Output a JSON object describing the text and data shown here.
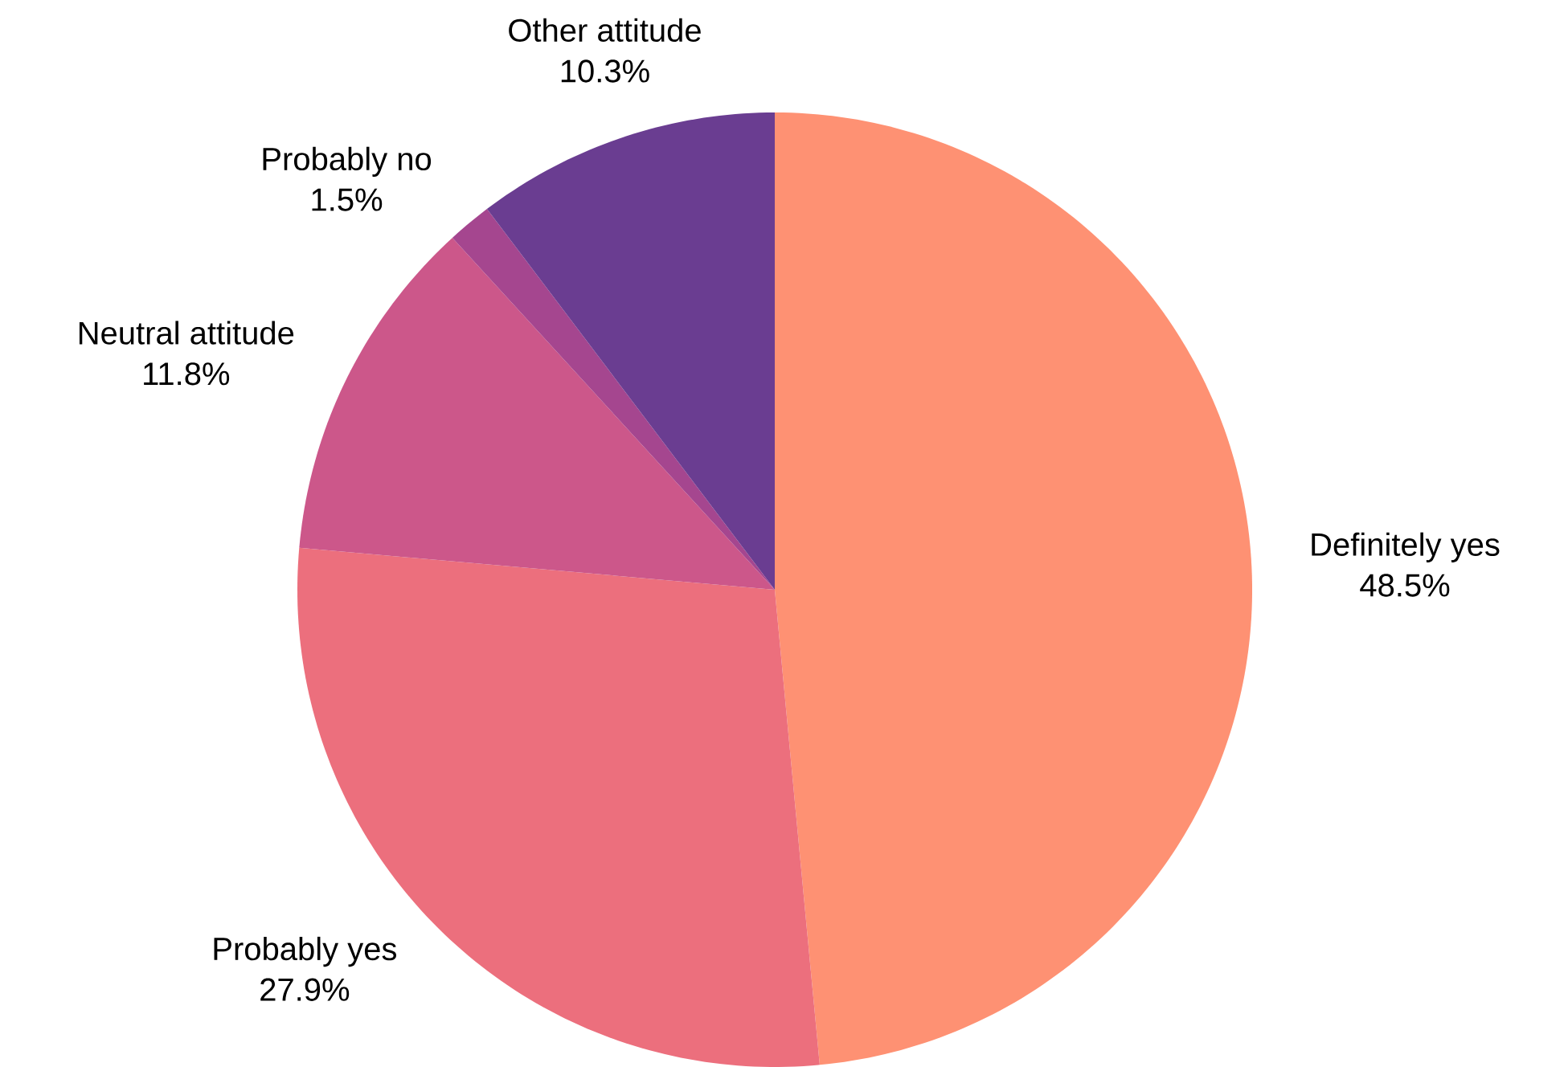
{
  "chart_data": {
    "type": "pie",
    "categories": [
      "Definitely yes",
      "Probably yes",
      "Neutral attitude",
      "Probably no",
      "Other attitude"
    ],
    "values": [
      48.5,
      27.9,
      11.8,
      1.5,
      10.3
    ],
    "value_labels": [
      "48.5%",
      "27.9%",
      "11.8%",
      "1.5%",
      "10.3%"
    ],
    "colors": [
      "#fe9173",
      "#ec6f7d",
      "#cc578a",
      "#a5468f",
      "#6a3d91"
    ]
  }
}
